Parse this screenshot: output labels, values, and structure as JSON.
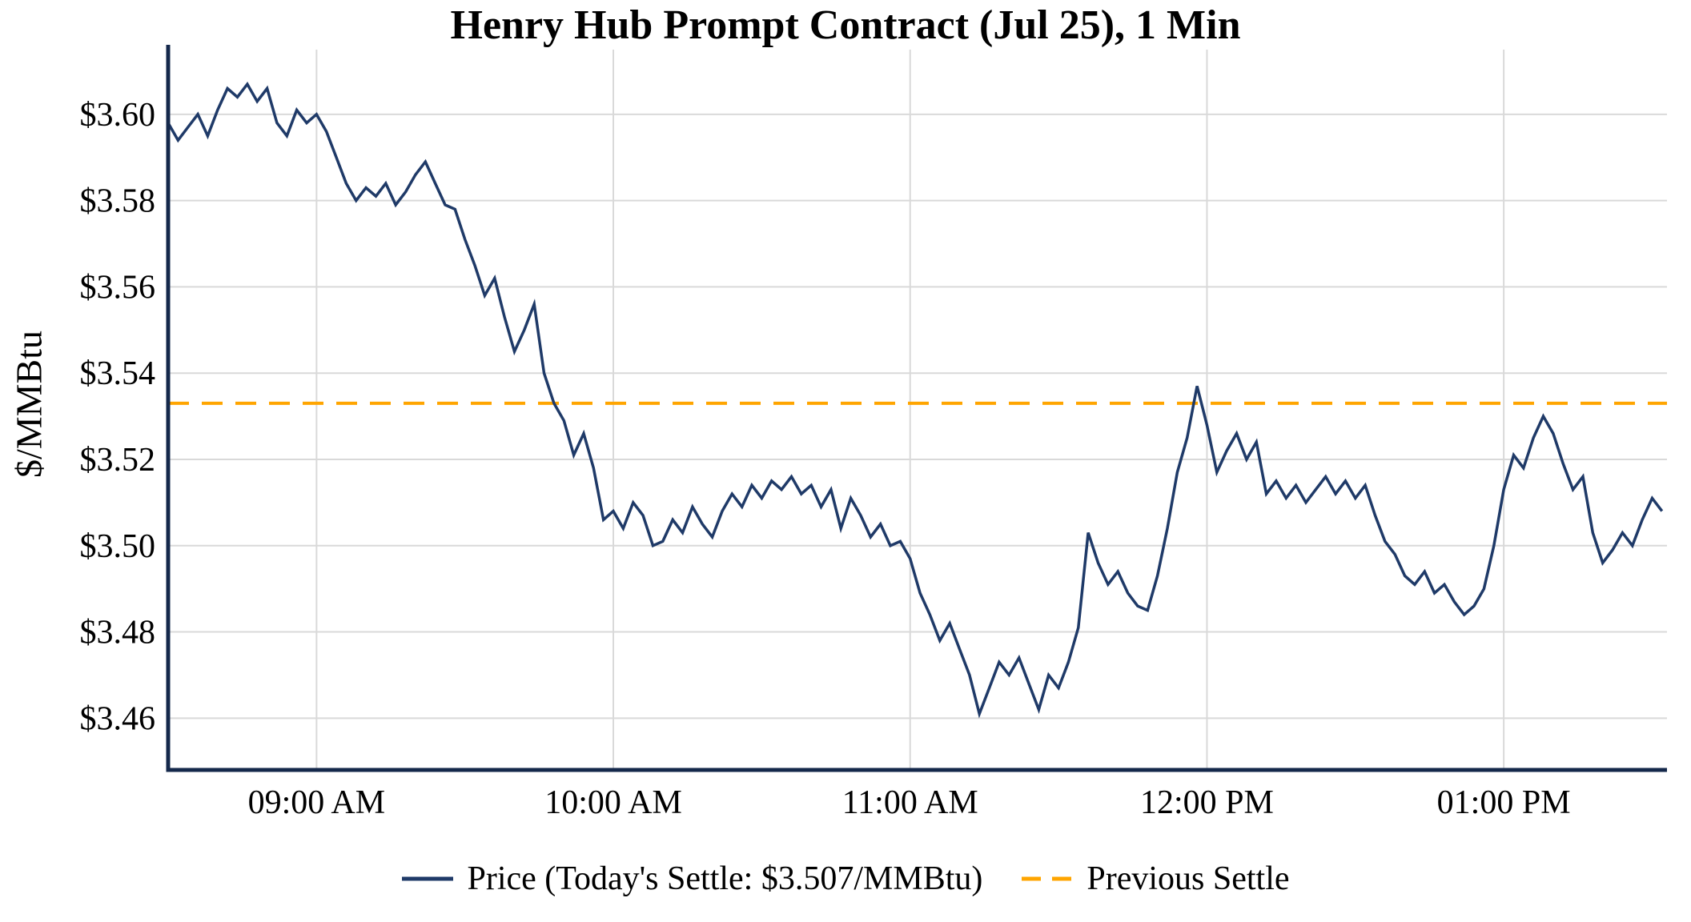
{
  "title": "Henry Hub Prompt Contract (Jul 25), 1 Min",
  "y_axis_label": "$/MMBtu",
  "legend": {
    "price": "Price (Today's Settle: $3.507/MMBtu)",
    "previous_settle": "Previous Settle"
  },
  "colors": {
    "price_line": "#1f3a68",
    "axis": "#14284b",
    "previous_settle": "#FFA500",
    "grid": "#d9d9d9",
    "text": "#000000"
  },
  "chart_data": {
    "type": "line",
    "title": "Henry Hub Prompt Contract (Jul 25), 1 Min",
    "xlabel": "",
    "ylabel": "$/MMBtu",
    "grid": true,
    "legend_position": "bottom",
    "todays_settle": 3.507,
    "previous_settle": 3.533,
    "x_axis": {
      "unit": "minutes after 08:30 AM",
      "lim": [
        0,
        303
      ],
      "tick_minutes": [
        30,
        90,
        150,
        210,
        270
      ],
      "tick_labels": [
        "09:00 AM",
        "10:00 AM",
        "11:00 AM",
        "12:00 PM",
        "01:00 PM"
      ]
    },
    "y_axis": {
      "lim": [
        3.448,
        3.615
      ],
      "ticks": [
        3.46,
        3.48,
        3.5,
        3.52,
        3.54,
        3.56,
        3.58,
        3.6
      ],
      "tick_labels": [
        "$3.46",
        "$3.48",
        "$3.50",
        "$3.52",
        "$3.54",
        "$3.56",
        "$3.58",
        "$3.60"
      ]
    },
    "series": [
      {
        "name": "Price",
        "t_start_minutes": 0,
        "t_step_minutes": 2,
        "values": [
          3.598,
          3.594,
          3.597,
          3.6,
          3.595,
          3.601,
          3.606,
          3.604,
          3.607,
          3.603,
          3.606,
          3.598,
          3.595,
          3.601,
          3.598,
          3.6,
          3.596,
          3.59,
          3.584,
          3.58,
          3.583,
          3.581,
          3.584,
          3.579,
          3.582,
          3.586,
          3.589,
          3.584,
          3.579,
          3.578,
          3.571,
          3.565,
          3.558,
          3.562,
          3.553,
          3.545,
          3.55,
          3.556,
          3.54,
          3.533,
          3.529,
          3.521,
          3.526,
          3.518,
          3.506,
          3.508,
          3.504,
          3.51,
          3.507,
          3.5,
          3.501,
          3.506,
          3.503,
          3.509,
          3.505,
          3.502,
          3.508,
          3.512,
          3.509,
          3.514,
          3.511,
          3.515,
          3.513,
          3.516,
          3.512,
          3.514,
          3.509,
          3.513,
          3.504,
          3.511,
          3.507,
          3.502,
          3.505,
          3.5,
          3.501,
          3.497,
          3.489,
          3.484,
          3.478,
          3.482,
          3.476,
          3.47,
          3.461,
          3.467,
          3.473,
          3.47,
          3.474,
          3.468,
          3.462,
          3.47,
          3.467,
          3.473,
          3.481,
          3.503,
          3.496,
          3.491,
          3.494,
          3.489,
          3.486,
          3.485,
          3.493,
          3.504,
          3.517,
          3.525,
          3.537,
          3.528,
          3.517,
          3.522,
          3.526,
          3.52,
          3.524,
          3.512,
          3.515,
          3.511,
          3.514,
          3.51,
          3.513,
          3.516,
          3.512,
          3.515,
          3.511,
          3.514,
          3.507,
          3.501,
          3.498,
          3.493,
          3.491,
          3.494,
          3.489,
          3.491,
          3.487,
          3.484,
          3.486,
          3.49,
          3.5,
          3.513,
          3.521,
          3.518,
          3.525,
          3.53,
          3.526,
          3.519,
          3.513,
          3.516,
          3.503,
          3.496,
          3.499,
          3.503,
          3.5,
          3.506,
          3.511,
          3.508
        ]
      }
    ]
  }
}
